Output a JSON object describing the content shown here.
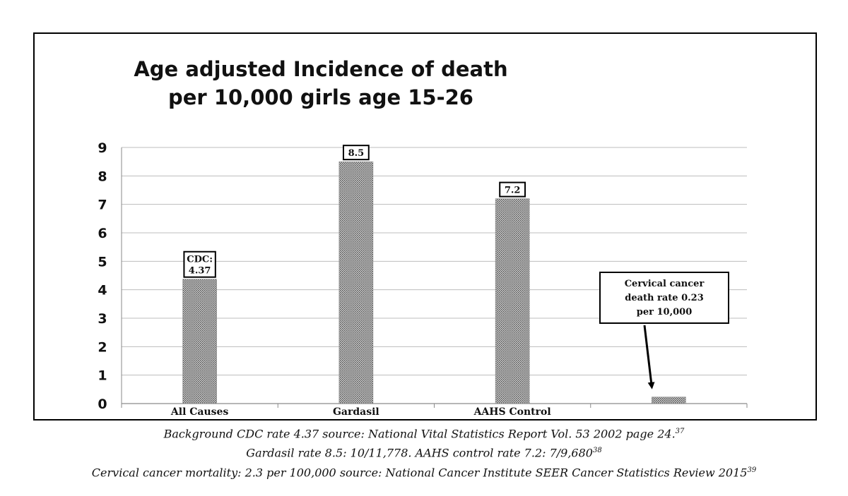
{
  "chart_data": {
    "type": "bar",
    "title_lines": [
      "Age adjusted Incidence of death",
      "per 10,000 girls age 15-26"
    ],
    "categories": [
      "All Causes",
      "Gardasil",
      "AAHS Control",
      ""
    ],
    "values": [
      4.37,
      8.5,
      7.2,
      0.23
    ],
    "bar_labels": [
      [
        "CDC:",
        "4.37"
      ],
      [
        "8.5"
      ],
      [
        "7.2"
      ],
      []
    ],
    "annotation": {
      "lines": [
        "Cervical cancer",
        "death rate 0.23",
        "per 10,000"
      ],
      "points_to": 3
    },
    "ylim": [
      0,
      9
    ],
    "yticks": [
      0,
      1,
      2,
      3,
      4,
      5,
      6,
      7,
      8,
      9
    ],
    "grid": true,
    "bar_color": "#9a9a9a"
  },
  "captions": [
    {
      "text": "Background CDC rate 4.37 source: National Vital Statistics Report Vol. 53 2002 page 24.",
      "ref": "37"
    },
    {
      "text": "Gardasil rate 8.5: 10/11,778. AAHS control rate 7.2: 7/9,680",
      "ref": "38"
    },
    {
      "text": "Cervical cancer mortality: 2.3 per 100,000 source: National Cancer Institute SEER Cancer Statistics Review 2015",
      "ref": "39"
    }
  ]
}
